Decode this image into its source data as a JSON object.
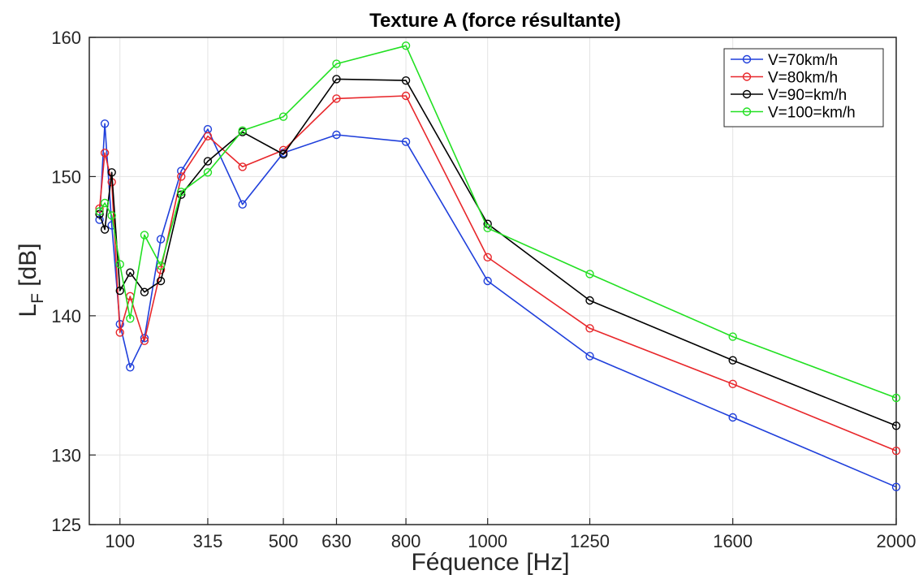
{
  "chart_data": {
    "type": "line",
    "title": "Texture A (force résultante)",
    "xlabel": "Féquence [Hz]",
    "ylabel_main": "L",
    "ylabel_sub": "F",
    "ylabel_rest": " [dB]",
    "xlim": [
      25,
      2000
    ],
    "ylim": [
      125,
      160
    ],
    "xticks": [
      100,
      315,
      500,
      630,
      800,
      1000,
      1250,
      1600,
      2000
    ],
    "xtick_labels": [
      "100",
      "315",
      "500",
      "630",
      "800",
      "1000",
      "1250",
      "1600",
      "2000"
    ],
    "yticks": [
      125,
      130,
      140,
      150,
      160
    ],
    "ytick_labels": [
      "125",
      "130",
      "140",
      "150",
      "160"
    ],
    "grid": true,
    "legend_position": "top-right",
    "x": [
      50,
      63,
      80,
      100,
      125,
      160,
      200,
      250,
      315,
      400,
      500,
      630,
      800,
      1000,
      1250,
      1600,
      2000
    ],
    "series": [
      {
        "name": "V=70km/h",
        "color": "#1f3fdb",
        "values": [
          146.9,
          153.8,
          146.5,
          139.4,
          136.3,
          138.4,
          145.5,
          150.4,
          153.4,
          148.0,
          151.7,
          153.0,
          152.5,
          142.5,
          137.1,
          132.7,
          127.7
        ]
      },
      {
        "name": "V=80km/h",
        "color": "#e8272b",
        "values": [
          147.7,
          151.7,
          149.6,
          138.8,
          141.4,
          138.2,
          143.3,
          150.0,
          152.9,
          150.7,
          151.9,
          155.6,
          155.8,
          144.2,
          139.1,
          135.1,
          130.3
        ]
      },
      {
        "name": "V=90=km/h",
        "color": "#000000",
        "values": [
          147.3,
          146.2,
          150.3,
          141.8,
          143.1,
          141.7,
          142.5,
          148.7,
          151.1,
          153.2,
          151.6,
          157.0,
          156.9,
          146.6,
          141.1,
          136.8,
          132.1
        ]
      },
      {
        "name": "V=100=km/h",
        "color": "#22e022",
        "values": [
          147.5,
          148.1,
          147.2,
          143.7,
          139.8,
          145.8,
          143.6,
          148.9,
          150.3,
          153.3,
          154.3,
          158.1,
          159.4,
          146.3,
          143.0,
          138.5,
          134.1
        ]
      }
    ]
  }
}
